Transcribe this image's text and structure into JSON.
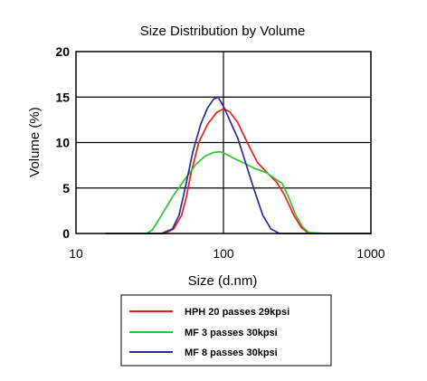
{
  "chart_data": {
    "type": "line",
    "title": "Size Distribution by Volume",
    "xlabel": "Size (d.nm)",
    "ylabel": "Volume (%)",
    "x_scale": "log",
    "xlim": [
      10,
      1000
    ],
    "ylim": [
      0,
      20
    ],
    "x_ticks": [
      "10",
      "100",
      "1000"
    ],
    "y_ticks": [
      "0",
      "5",
      "10",
      "15",
      "20"
    ],
    "grid": true,
    "legend_position": "bottom-center",
    "series": [
      {
        "name": "HPH 20 passes 29kpsi",
        "color": "#ee1c1c",
        "points": [
          [
            16,
            0
          ],
          [
            40,
            0
          ],
          [
            46,
            0.5
          ],
          [
            52,
            2
          ],
          [
            56,
            4
          ],
          [
            60,
            6.5
          ],
          [
            68,
            10
          ],
          [
            78,
            12
          ],
          [
            90,
            13.3
          ],
          [
            100,
            13.7
          ],
          [
            110,
            13.4
          ],
          [
            125,
            12.2
          ],
          [
            145,
            10
          ],
          [
            170,
            7.8
          ],
          [
            200,
            6.6
          ],
          [
            230,
            5.6
          ],
          [
            260,
            4.2
          ],
          [
            300,
            2
          ],
          [
            340,
            0.6
          ],
          [
            380,
            0
          ],
          [
            1000,
            0
          ]
        ]
      },
      {
        "name": "MF 3 passes 30kpsi",
        "color": "#2fc22f",
        "points": [
          [
            16,
            0
          ],
          [
            30,
            0
          ],
          [
            33,
            0.4
          ],
          [
            38,
            2
          ],
          [
            45,
            4
          ],
          [
            55,
            6
          ],
          [
            65,
            7.6
          ],
          [
            75,
            8.5
          ],
          [
            85,
            8.9
          ],
          [
            95,
            9
          ],
          [
            105,
            8.7
          ],
          [
            120,
            8.2
          ],
          [
            140,
            7.7
          ],
          [
            165,
            7.1
          ],
          [
            195,
            6.7
          ],
          [
            225,
            6
          ],
          [
            250,
            5.5
          ],
          [
            280,
            3.8
          ],
          [
            310,
            2
          ],
          [
            345,
            0.7
          ],
          [
            380,
            0.1
          ],
          [
            500,
            0
          ],
          [
            1000,
            0
          ]
        ]
      },
      {
        "name": "MF 8 passes 30kpsi",
        "color": "#2b2b9e",
        "points": [
          [
            16,
            0
          ],
          [
            38,
            0
          ],
          [
            45,
            0.5
          ],
          [
            50,
            2
          ],
          [
            55,
            5
          ],
          [
            62,
            9
          ],
          [
            70,
            12
          ],
          [
            78,
            13.8
          ],
          [
            86,
            14.8
          ],
          [
            92,
            15
          ],
          [
            100,
            14
          ],
          [
            110,
            12.5
          ],
          [
            125,
            10.5
          ],
          [
            140,
            8
          ],
          [
            160,
            5
          ],
          [
            185,
            2
          ],
          [
            210,
            0.5
          ],
          [
            240,
            0
          ],
          [
            1000,
            0
          ]
        ]
      }
    ]
  }
}
